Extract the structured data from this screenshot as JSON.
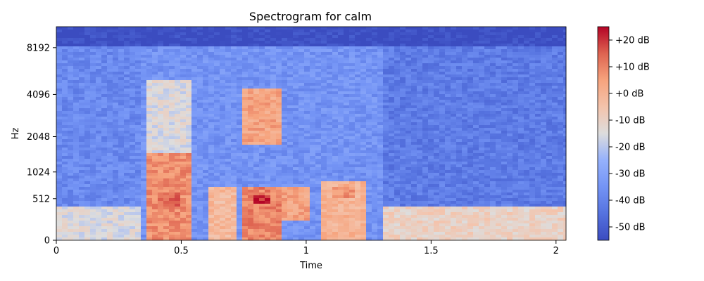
{
  "chart_data": {
    "type": "heatmap",
    "title": "Spectrogram for calm",
    "xlabel": "Time",
    "ylabel": "Hz",
    "xlim": [
      0,
      2.04
    ],
    "x_ticks": [
      0,
      0.5,
      1,
      1.5,
      2
    ],
    "x_tick_labels": [
      "0",
      "0.5",
      "1",
      "1.5",
      "2"
    ],
    "y_scale": "mel",
    "y_ticks": [
      0,
      512,
      1024,
      2048,
      4096,
      8192
    ],
    "y_tick_labels": [
      "0",
      "512",
      "1024",
      "2048",
      "4096",
      "8192"
    ],
    "ymax_hz": 11025,
    "colormap": "coolwarm",
    "colorbar": {
      "vmin": -55,
      "vmax": 25,
      "ticks": [
        20,
        10,
        0,
        -10,
        -20,
        -30,
        -40,
        -50
      ],
      "tick_labels": [
        "+20 dB",
        "+10 dB",
        "+0 dB",
        "-10 dB",
        "-20 dB",
        "-30 dB",
        "-40 dB",
        "-50 dB"
      ]
    },
    "energy_regions": [
      {
        "time": [
          0.0,
          0.33
        ],
        "hz": [
          0,
          400
        ],
        "level_db": -15
      },
      {
        "time": [
          0.0,
          0.33
        ],
        "hz": [
          400,
          8192
        ],
        "level_db": -38
      },
      {
        "time": [
          0.35,
          0.55
        ],
        "hz": [
          0,
          1500
        ],
        "level_db": 8
      },
      {
        "time": [
          0.4,
          0.5
        ],
        "hz": [
          350,
          600
        ],
        "level_db": 14
      },
      {
        "time": [
          0.35,
          0.55
        ],
        "hz": [
          1500,
          5000
        ],
        "level_db": -15
      },
      {
        "time": [
          0.6,
          0.72
        ],
        "hz": [
          0,
          700
        ],
        "level_db": -2
      },
      {
        "time": [
          0.74,
          0.9
        ],
        "hz": [
          0,
          700
        ],
        "level_db": 10
      },
      {
        "time": [
          0.78,
          0.85
        ],
        "hz": [
          450,
          560
        ],
        "level_db": 22
      },
      {
        "time": [
          0.75,
          0.9
        ],
        "hz": [
          1800,
          4500
        ],
        "level_db": 4
      },
      {
        "time": [
          0.9,
          1.02
        ],
        "hz": [
          200,
          700
        ],
        "level_db": 4
      },
      {
        "time": [
          1.05,
          1.25
        ],
        "hz": [
          0,
          800
        ],
        "level_db": 0
      },
      {
        "time": [
          1.1,
          1.2
        ],
        "hz": [
          500,
          700
        ],
        "level_db": 8
      },
      {
        "time": [
          1.3,
          2.04
        ],
        "hz": [
          0,
          400
        ],
        "level_db": -10
      },
      {
        "time": [
          1.3,
          2.04
        ],
        "hz": [
          400,
          8192
        ],
        "level_db": -42
      },
      {
        "time": [
          0.0,
          2.04
        ],
        "hz": [
          8500,
          11025
        ],
        "level_db": -55
      }
    ]
  }
}
